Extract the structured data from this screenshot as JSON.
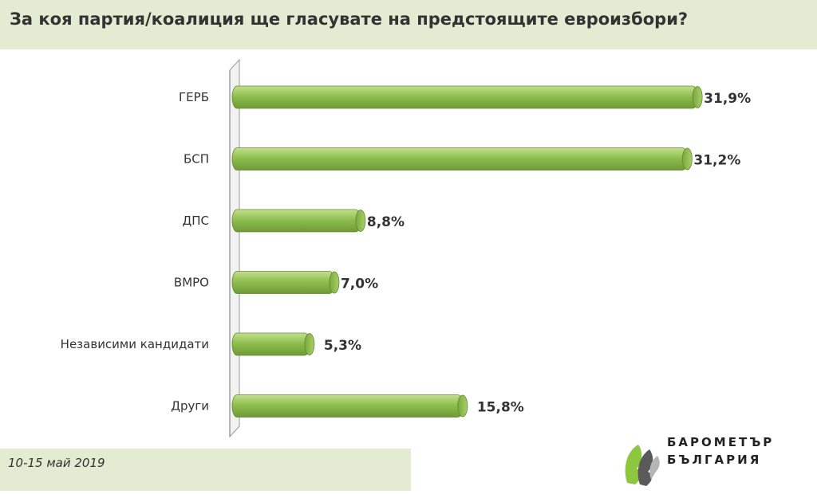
{
  "title": "За коя партия/коалиция ще гласувате на предстоящите евроизбори?",
  "footer": {
    "date_range": "10-15 май 2019"
  },
  "logo": {
    "line1": "БАРОМЕТЪР",
    "line2": "БЪЛГАРИЯ"
  },
  "colors": {
    "bar_fill": "#8fbf4f",
    "bar_dark": "#6e9a35",
    "bar_light": "#c4e08e",
    "panel": "#e3ebd2",
    "text": "#333333"
  },
  "chart_data": {
    "type": "bar",
    "orientation": "horizontal",
    "title": "За коя партия/коалиция ще гласувате на предстоящите евроизбори?",
    "categories": [
      "ГЕРБ",
      "БСП",
      "ДПС",
      "ВМРО",
      "Независими кандидати",
      "Други"
    ],
    "values": [
      31.9,
      31.2,
      8.8,
      7.0,
      5.3,
      15.8
    ],
    "value_labels": [
      "31,9%",
      "31,2%",
      "8,8%",
      "7,0%",
      "5,3%",
      "15,8%"
    ],
    "xlim": [
      0,
      32
    ],
    "grid": false,
    "legend": "none"
  }
}
